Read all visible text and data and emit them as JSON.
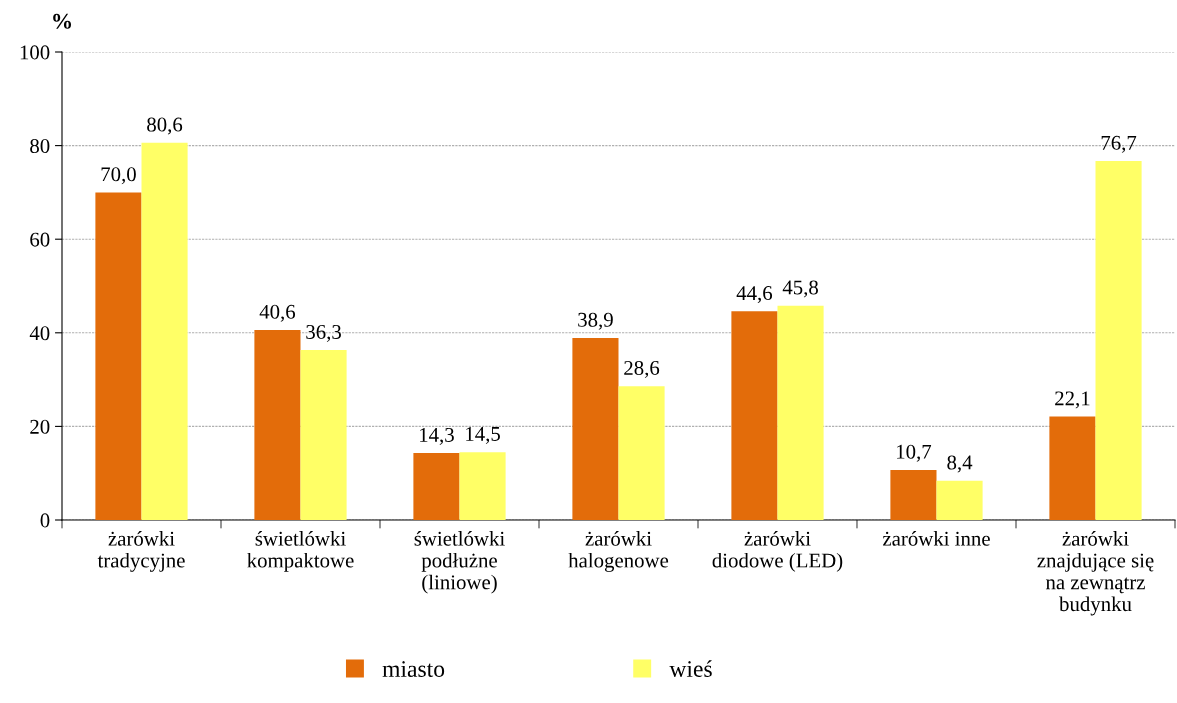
{
  "chart_data": {
    "type": "bar",
    "ylabel": "%",
    "categories": [
      "żarówki\ntradycyjne",
      "świetlówki\nkompaktowe",
      "świetlówki\npodłużne\n(liniowe)",
      "żarówki\nhalogenowe",
      "żarówki\ndiodowe (LED)",
      "żarówki inne",
      "żarówki\nznajdujące się\nna zewnątrz\nbudynku"
    ],
    "series": [
      {
        "name": "miasto",
        "color": "#e36c0a",
        "values": [
          70.0,
          40.6,
          14.3,
          38.9,
          44.6,
          10.7,
          22.1
        ],
        "value_labels": [
          "70,0",
          "40,6",
          "14,3",
          "38,9",
          "44,6",
          "10,7",
          "22,1"
        ]
      },
      {
        "name": "wieś",
        "color": "#ffff66",
        "values": [
          80.6,
          36.3,
          14.5,
          28.6,
          45.8,
          8.4,
          76.7
        ],
        "value_labels": [
          "80,6",
          "36,3",
          "14,5",
          "28,6",
          "45,8",
          "8,4",
          "76,7"
        ]
      }
    ],
    "ylim": [
      0,
      100
    ],
    "yticks": [
      0,
      20,
      40,
      60,
      80,
      100
    ],
    "grid": "y",
    "legend": "bottom"
  }
}
